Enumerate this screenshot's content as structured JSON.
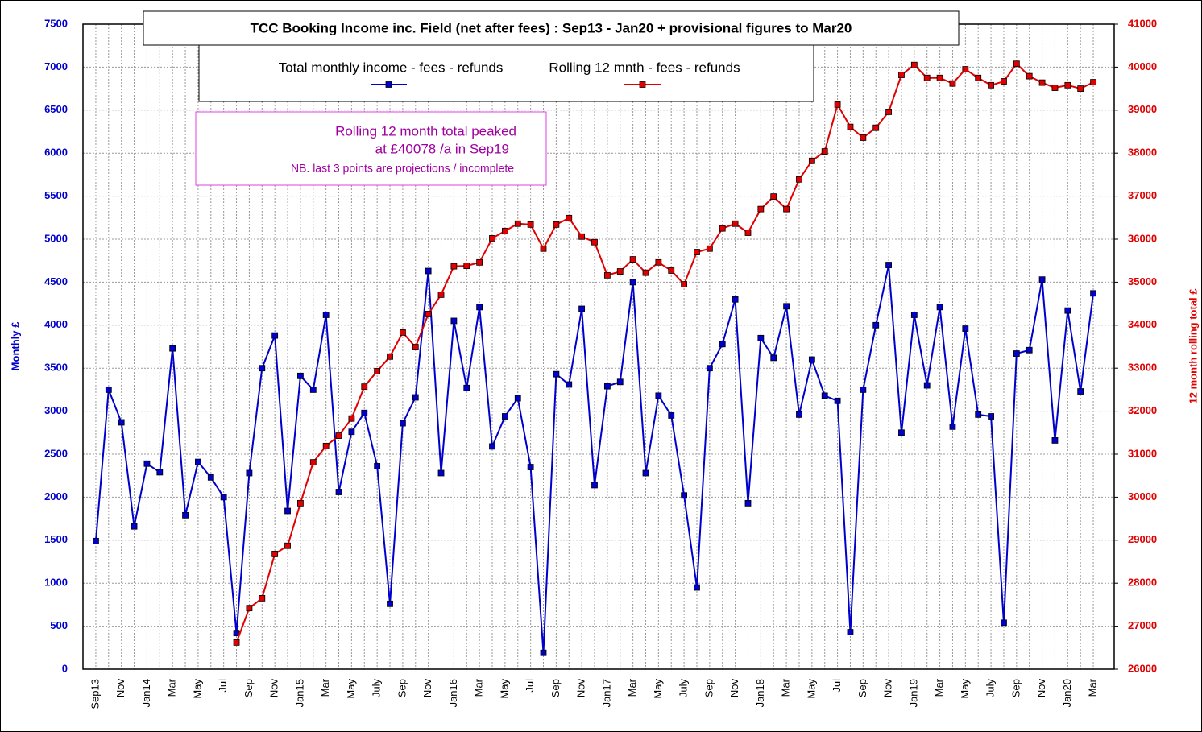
{
  "chart_data": {
    "type": "line",
    "title": "TCC Booking Income inc. Field (net after fees) : Sep13 - Jan20  +  provisional figures to Mar20",
    "ylabel": "Monthly  £",
    "y2label": "12 month rolling total  £",
    "annotations": [
      "Rolling 12 month total peaked",
      "at  £40078 /a  in Sep19",
      "NB. last 3 points are projections / incomplete"
    ],
    "categories": [
      "Sep13",
      null,
      "Nov",
      null,
      "Jan14",
      null,
      "Mar",
      null,
      "May",
      null,
      "Jul",
      null,
      "Sep",
      null,
      "Nov",
      null,
      "Jan15",
      null,
      "Mar",
      null,
      "May",
      null,
      "July",
      null,
      "Sep",
      null,
      "Nov",
      null,
      "Jan16",
      null,
      "Mar",
      null,
      "May",
      null,
      "Jul",
      null,
      "Sep",
      null,
      "Nov",
      null,
      "Jan17",
      null,
      "Mar",
      null,
      "May",
      null,
      "July",
      null,
      "Sep",
      null,
      "Nov",
      null,
      "Jan18",
      null,
      "Mar",
      null,
      "May",
      null,
      "Jul",
      null,
      "Sep",
      null,
      "Nov",
      null,
      "Jan19",
      null,
      "Mar",
      null,
      "May",
      null,
      "July",
      null,
      "Sep",
      null,
      "Nov",
      null,
      "Jan20",
      null,
      "Mar"
    ],
    "series": [
      {
        "name": "Total monthly income - fees - refunds",
        "color": "#0000cc",
        "axis": "y",
        "values": [
          1490,
          3250,
          2870,
          1660,
          2390,
          2290,
          3730,
          1790,
          2410,
          2230,
          2000,
          420,
          2280,
          3500,
          3880,
          1840,
          3410,
          3250,
          4120,
          2060,
          2760,
          2980,
          2360,
          760,
          2860,
          3160,
          4630,
          2280,
          4050,
          3270,
          4210,
          2590,
          2940,
          3150,
          2350,
          190,
          3430,
          3310,
          4190,
          2140,
          3290,
          3340,
          4500,
          2280,
          3180,
          2950,
          2020,
          950,
          3500,
          3780,
          4300,
          1930,
          3850,
          3620,
          4220,
          2960,
          3600,
          3180,
          3120,
          430,
          3250,
          4000,
          4700,
          2750,
          4120,
          3300,
          4210,
          2820,
          3960,
          2960,
          2940,
          540,
          3670,
          3710,
          4530,
          2660,
          4170,
          3230,
          4370
        ]
      },
      {
        "name": "Rolling 12 mnth - fees - refunds",
        "color": "#e00000",
        "axis": "y2",
        "values": [
          null,
          null,
          null,
          null,
          null,
          null,
          null,
          null,
          null,
          null,
          null,
          26620,
          27420,
          27650,
          28680,
          28870,
          29860,
          30810,
          31190,
          31430,
          31830,
          32570,
          32930,
          33270,
          33830,
          33490,
          34260,
          34710,
          35370,
          35380,
          35460,
          36020,
          36190,
          36360,
          36340,
          35780,
          36340,
          36490,
          36060,
          35930,
          35160,
          35250,
          35530,
          35220,
          35460,
          35270,
          34950,
          35700,
          35780,
          36250,
          36360,
          36150,
          36700,
          36990,
          36700,
          37390,
          37820,
          38040,
          39130,
          38610,
          38360,
          38590,
          38960,
          39820,
          40050,
          39750,
          39750,
          39620,
          39950,
          39750,
          39580,
          39670,
          40078,
          39790,
          39640,
          39520,
          39580,
          39500,
          39650
        ]
      }
    ],
    "ylim": [
      0,
      7500
    ],
    "yticks": [
      0,
      500,
      1000,
      1500,
      2000,
      2500,
      3000,
      3500,
      4000,
      4500,
      5000,
      5500,
      6000,
      6500,
      7000,
      7500
    ],
    "y2lim": [
      26000,
      41000
    ],
    "y2ticks": [
      26000,
      27000,
      28000,
      29000,
      30000,
      31000,
      32000,
      33000,
      34000,
      35000,
      36000,
      37000,
      38000,
      39000,
      40000,
      41000
    ],
    "grid": true
  }
}
